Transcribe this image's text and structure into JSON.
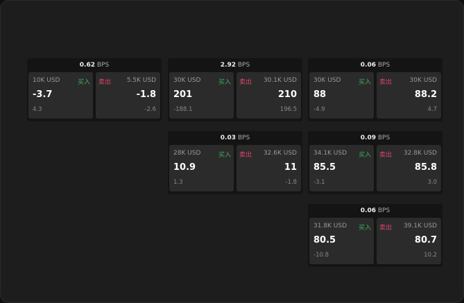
{
  "colors": {
    "buy": "#3fae5e",
    "sell": "#e0456a"
  },
  "buy_label": "买入",
  "sell_label": "卖出",
  "unit": "BPS",
  "widgets": [
    {
      "spread": "0.62",
      "buy": {
        "size": "10K USD",
        "price": "-3.7",
        "change": "4.3"
      },
      "sell": {
        "size": "5.5K USD",
        "price": "-1.8",
        "change": "-2.6"
      }
    },
    {
      "spread": "2.92",
      "buy": {
        "size": "30K USD",
        "price": "201",
        "change": "-188.1"
      },
      "sell": {
        "size": "30.1K USD",
        "price": "210",
        "change": "196.5"
      }
    },
    {
      "spread": "0.06",
      "buy": {
        "size": "30K USD",
        "price": "88",
        "change": "-4.9"
      },
      "sell": {
        "size": "30K USD",
        "price": "88.2",
        "change": "4.7"
      }
    },
    {
      "spread": "0.03",
      "buy": {
        "size": "28K USD",
        "price": "10.9",
        "change": "1.3"
      },
      "sell": {
        "size": "32.6K USD",
        "price": "11",
        "change": "-1.8"
      }
    },
    {
      "spread": "0.09",
      "buy": {
        "size": "34.1K USD",
        "price": "85.5",
        "change": "-3.1"
      },
      "sell": {
        "size": "32.8K USD",
        "price": "85.8",
        "change": "3.0"
      }
    },
    {
      "spread": "0.06",
      "buy": {
        "size": "31.8K USD",
        "price": "80.5",
        "change": "-10.8"
      },
      "sell": {
        "size": "39.1K USD",
        "price": "80.7",
        "change": "10.2"
      }
    }
  ]
}
